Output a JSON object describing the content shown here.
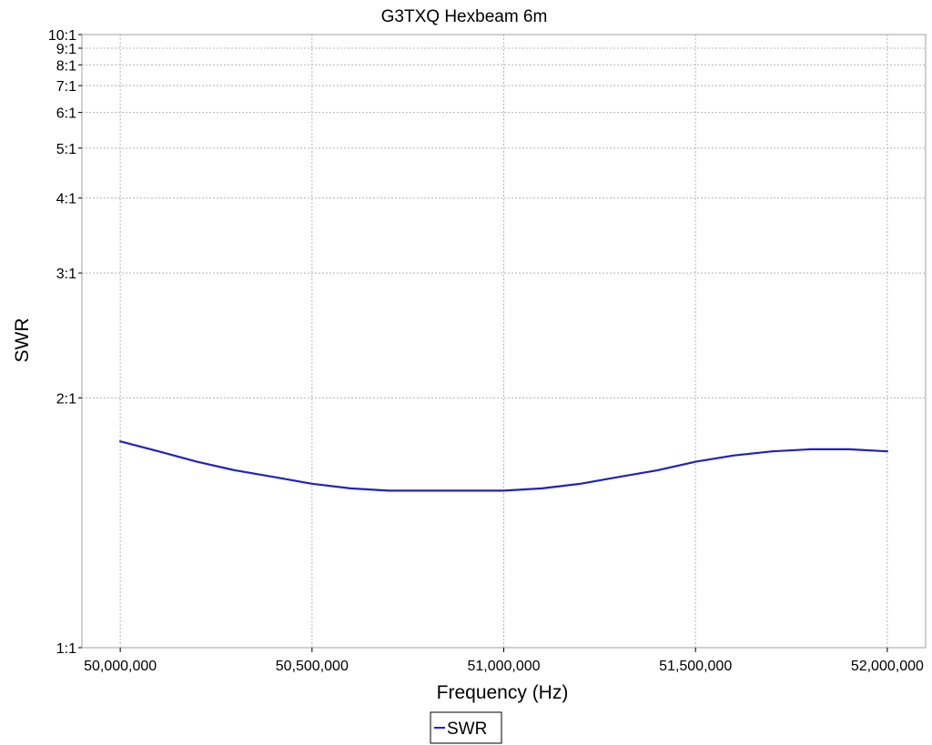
{
  "chart_data": {
    "type": "line",
    "title": "G3TXQ Hexbeam 6m",
    "xlabel": "Frequency (Hz)",
    "ylabel": "SWR",
    "xlim": [
      49900000,
      52100000
    ],
    "ylim": [
      1,
      10
    ],
    "y_scale": "reflection-coefficient",
    "grid": true,
    "legend_position": "bottom-center",
    "x_ticks": [
      {
        "value": 50000000,
        "label": "50,000,000"
      },
      {
        "value": 50500000,
        "label": "50,500,000"
      },
      {
        "value": 51000000,
        "label": "51,000,000"
      },
      {
        "value": 51500000,
        "label": "51,500,000"
      },
      {
        "value": 52000000,
        "label": "52,000,000"
      }
    ],
    "y_ticks": [
      {
        "value": 1,
        "label": "1:1"
      },
      {
        "value": 2,
        "label": "2:1"
      },
      {
        "value": 3,
        "label": "3:1"
      },
      {
        "value": 4,
        "label": "4:1"
      },
      {
        "value": 5,
        "label": "5:1"
      },
      {
        "value": 6,
        "label": "6:1"
      },
      {
        "value": 7,
        "label": "7:1"
      },
      {
        "value": 8,
        "label": "8:1"
      },
      {
        "value": 9,
        "label": "9:1"
      },
      {
        "value": 10,
        "label": "10:1"
      }
    ],
    "series": [
      {
        "name": "SWR",
        "color": "#2020c0",
        "x": [
          50000000,
          50100000,
          50200000,
          50300000,
          50400000,
          50500000,
          50600000,
          50700000,
          50800000,
          50900000,
          51000000,
          51100000,
          51200000,
          51300000,
          51400000,
          51500000,
          51600000,
          51700000,
          51800000,
          51900000,
          52000000
        ],
        "y": [
          1.76,
          1.71,
          1.66,
          1.62,
          1.59,
          1.56,
          1.54,
          1.53,
          1.53,
          1.53,
          1.53,
          1.54,
          1.56,
          1.59,
          1.62,
          1.66,
          1.69,
          1.71,
          1.72,
          1.72,
          1.71
        ]
      }
    ]
  },
  "colors": {
    "background": "#ffffff",
    "grid": "#b4b4b4",
    "frame": "#a0a0a0",
    "series": "#2020c0"
  }
}
